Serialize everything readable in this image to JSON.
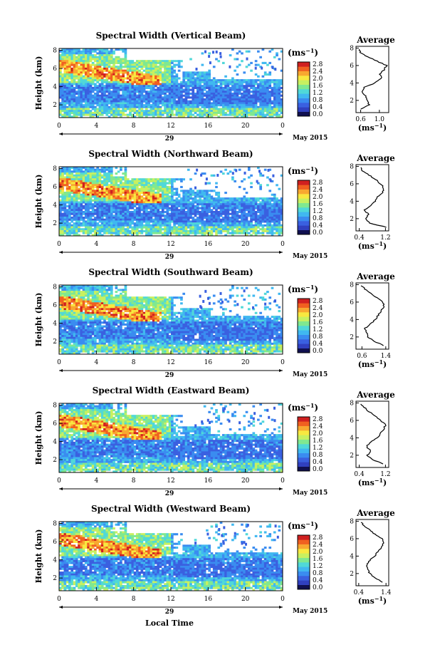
{
  "colorbar": {
    "unit": "(ms",
    "unit_sup": "−1",
    "unit_close": ")",
    "colors": [
      "#101050",
      "#3040c0",
      "#3a60e0",
      "#3a8cf0",
      "#40b8f0",
      "#50d8d8",
      "#80e890",
      "#c8f060",
      "#f8e840",
      "#f8a830",
      "#f06020",
      "#d02020"
    ]
  },
  "labels": {
    "ylabel": "Height (km)",
    "xlabel": "Local Time",
    "date_day": "29",
    "date_label": "May 2015",
    "avg_title": "Average"
  },
  "chart_data": [
    {
      "type": "heatmap",
      "title": "Spectral Width (Vertical Beam)",
      "x_ticks": [
        "0",
        "4",
        "8",
        "12",
        "16",
        "20",
        "0"
      ],
      "y_ticks": [
        "2",
        "4",
        "6",
        "8"
      ],
      "cbar_ticks": [
        "0.0",
        "0.4",
        "0.8",
        "1.2",
        "1.6",
        "2.0",
        "2.4",
        "2.8"
      ],
      "avg_x_ticks": [
        "0.6",
        "1.0"
      ],
      "avg_y_ticks": [
        "2",
        "4",
        "6",
        "8"
      ],
      "avg_xlim": [
        0.5,
        1.2
      ],
      "avg_profile": {
        "height": [
          1.0,
          1.5,
          2.0,
          2.5,
          3.0,
          3.5,
          4.0,
          4.5,
          5.0,
          5.5,
          6.0,
          6.5,
          7.0,
          7.5,
          8.0
        ],
        "width": [
          0.62,
          0.78,
          0.74,
          0.7,
          0.62,
          0.68,
          0.9,
          1.05,
          1.0,
          1.1,
          1.15,
          0.95,
          0.75,
          0.6,
          0.55
        ]
      }
    },
    {
      "type": "heatmap",
      "title": "Spectral Width (Northward Beam)",
      "x_ticks": [
        "0",
        "4",
        "8",
        "12",
        "16",
        "20",
        "0"
      ],
      "y_ticks": [
        "2",
        "4",
        "6",
        "8"
      ],
      "cbar_ticks": [
        "0.0",
        "0.4",
        "0.8",
        "1.2",
        "1.6",
        "2.0",
        "2.4",
        "2.8"
      ],
      "avg_x_ticks": [
        "0.4",
        "1.2"
      ],
      "avg_y_ticks": [
        "2",
        "4",
        "6",
        "8"
      ],
      "avg_xlim": [
        0.3,
        1.3
      ],
      "avg_profile": {
        "height": [
          1.0,
          1.5,
          2.0,
          2.5,
          3.0,
          3.5,
          4.0,
          4.5,
          5.0,
          5.5,
          6.0,
          6.5,
          7.0,
          7.5,
          8.0
        ],
        "width": [
          1.25,
          0.7,
          0.6,
          0.68,
          0.55,
          0.75,
          0.9,
          0.95,
          1.1,
          1.15,
          1.05,
          0.9,
          0.7,
          0.5,
          0.4
        ]
      }
    },
    {
      "type": "heatmap",
      "title": "Spectral Width (Southward Beam)",
      "x_ticks": [
        "0",
        "4",
        "8",
        "12",
        "16",
        "20",
        "0"
      ],
      "y_ticks": [
        "2",
        "4",
        "6",
        "8"
      ],
      "cbar_ticks": [
        "0.0",
        "0.4",
        "0.8",
        "1.2",
        "1.6",
        "2.0",
        "2.4",
        "2.8"
      ],
      "avg_x_ticks": [
        "0.6",
        "1.4"
      ],
      "avg_y_ticks": [
        "2",
        "4",
        "6",
        "8"
      ],
      "avg_xlim": [
        0.4,
        1.5
      ],
      "avg_profile": {
        "height": [
          1.0,
          1.5,
          2.0,
          2.5,
          3.0,
          3.5,
          4.0,
          4.5,
          5.0,
          5.5,
          6.0,
          6.5,
          7.0,
          7.5,
          8.0
        ],
        "width": [
          1.35,
          1.0,
          0.8,
          0.75,
          0.7,
          0.9,
          1.05,
          1.15,
          1.25,
          1.35,
          1.3,
          1.1,
          0.9,
          0.7,
          0.55
        ]
      }
    },
    {
      "type": "heatmap",
      "title": "Spectral Width (Eastward Beam)",
      "x_ticks": [
        "0",
        "4",
        "8",
        "12",
        "16",
        "20",
        "0"
      ],
      "y_ticks": [
        "2",
        "4",
        "6",
        "8"
      ],
      "cbar_ticks": [
        "0.0",
        "0.4",
        "0.8",
        "1.2",
        "1.6",
        "2.0",
        "2.4",
        "2.8"
      ],
      "avg_x_ticks": [
        "0.4",
        "1.2"
      ],
      "avg_y_ticks": [
        "2",
        "4",
        "6",
        "8"
      ],
      "avg_xlim": [
        0.3,
        1.3
      ],
      "avg_profile": {
        "height": [
          1.0,
          1.5,
          2.0,
          2.5,
          3.0,
          3.5,
          4.0,
          4.5,
          5.0,
          5.5,
          6.0,
          6.5,
          7.0,
          7.5,
          8.0
        ],
        "width": [
          1.15,
          0.8,
          0.65,
          0.75,
          0.62,
          0.75,
          0.95,
          1.05,
          1.15,
          1.2,
          1.05,
          0.9,
          0.7,
          0.55,
          0.42
        ]
      }
    },
    {
      "type": "heatmap",
      "title": "Spectral Width (Westward Beam)",
      "x_ticks": [
        "0",
        "4",
        "8",
        "12",
        "16",
        "20",
        "0"
      ],
      "y_ticks": [
        "2",
        "4",
        "6",
        "8"
      ],
      "cbar_ticks": [
        "0.0",
        "0.4",
        "0.8",
        "1.2",
        "1.6",
        "2.0",
        "2.4",
        "2.8"
      ],
      "avg_x_ticks": [
        "0.4",
        "1.4"
      ],
      "avg_y_ticks": [
        "2",
        "4",
        "6",
        "8"
      ],
      "avg_xlim": [
        0.3,
        1.5
      ],
      "avg_profile": {
        "height": [
          1.0,
          1.5,
          2.0,
          2.5,
          3.0,
          3.5,
          4.0,
          4.5,
          5.0,
          5.5,
          6.0,
          6.5,
          7.0,
          7.5,
          8.0
        ],
        "width": [
          1.3,
          1.0,
          0.8,
          0.75,
          0.7,
          0.8,
          1.0,
          1.1,
          1.25,
          1.3,
          1.25,
          1.0,
          0.8,
          0.6,
          0.45
        ]
      }
    }
  ]
}
